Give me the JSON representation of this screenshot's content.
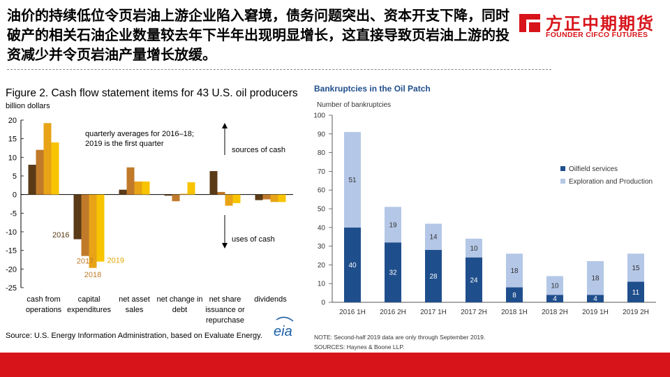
{
  "headline": "油价的持续低位令页岩油上游企业陷入窘境，债务问题突出、资本开支下降，同时破产的相关石油企业数量较去年下半年出现明显增长，这直接导致页岩油上游的投资减少并令页岩油产量增长放缓。",
  "logo": {
    "cn": "方正中期期货",
    "en": "FOUNDER CIFCO FUTURES",
    "brand_color": "#d7141a"
  },
  "chart_data": [
    {
      "type": "bar",
      "title": "Figure 2. Cash flow statement items for 43 U.S. oil producers",
      "ylabel": "billion dollars",
      "ylim": [
        -25,
        20
      ],
      "yticks": [
        -25,
        -20,
        -15,
        -10,
        -5,
        0,
        5,
        10,
        15,
        20
      ],
      "categories": [
        [
          "cash from",
          "operations"
        ],
        [
          "capital",
          "expenditures"
        ],
        [
          "net asset",
          "sales"
        ],
        [
          "net change in",
          "debt"
        ],
        [
          "net share",
          "issuance or",
          "repurchase"
        ],
        [
          "dividends"
        ]
      ],
      "series": [
        {
          "name": "2016",
          "color": "#5a3a17",
          "values": [
            8,
            -12,
            1.3,
            -0.3,
            6.3,
            -1.5
          ]
        },
        {
          "name": "2017",
          "color": "#c07a2a",
          "values": [
            12,
            -16.5,
            7.3,
            -1.8,
            0.7,
            -1.3
          ]
        },
        {
          "name": "2018",
          "color": "#e8a317",
          "values": [
            19.2,
            -19.7,
            3.5,
            0.2,
            -3,
            -2
          ]
        },
        {
          "name": "2019",
          "color": "#f8c400",
          "values": [
            14,
            -18,
            3.5,
            3.3,
            -2.3,
            -2
          ]
        }
      ],
      "annotation": [
        "quarterly averages for 2016–18;",
        "2019 is the first quarter"
      ],
      "arrow_up_label": "sources of cash",
      "arrow_down_label": "uses of cash",
      "source": "Source:  U.S. Energy Information  Administration, based on Evaluate  Energy.",
      "logo": "eia",
      "grid": false
    },
    {
      "type": "bar",
      "stacked": true,
      "title": "Bankruptcies in the Oil Patch",
      "ylabel": "Number of bankruptcies",
      "ylim": [
        0,
        100
      ],
      "yticks": [
        0,
        10,
        20,
        30,
        40,
        50,
        60,
        70,
        80,
        90,
        100
      ],
      "categories": [
        "2016 1H",
        "2016 2H",
        "2017 1H",
        "2017 2H",
        "2018 1H",
        "2018 2H",
        "2019 1H",
        "2019 2H"
      ],
      "series": [
        {
          "name": "Oilfield services",
          "color": "#1f4e8c",
          "values": [
            40,
            32,
            28,
            24,
            8,
            4,
            4,
            11
          ]
        },
        {
          "name": "Exploration and Production",
          "color": "#b4c7e7",
          "values": [
            51,
            19,
            14,
            10,
            18,
            10,
            18,
            15
          ]
        }
      ],
      "legend": "center-right",
      "grid": false,
      "notes": [
        "NOTE: Second-half 2019 data are only through September 2019.",
        "SOURCES: Haynes & Boone LLP."
      ]
    }
  ]
}
